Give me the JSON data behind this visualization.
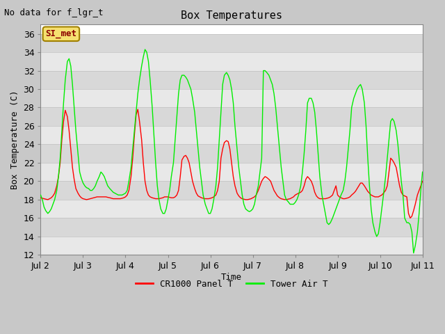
{
  "title": "Box Temperatures",
  "xlabel": "Time",
  "ylabel": "Box Temperature (C)",
  "note": "No data for f_lgr_t",
  "annotation_text": "SI_met",
  "ylim": [
    12,
    37
  ],
  "yticks": [
    12,
    14,
    16,
    18,
    20,
    22,
    24,
    26,
    28,
    30,
    32,
    34,
    36
  ],
  "bg_color": "#c8c8c8",
  "plot_bg_light": "#e8e8e8",
  "plot_bg_dark": "#d8d8d8",
  "grid_color": "#c8c8c8",
  "legend_labels": [
    "CR1000 Panel T",
    "Tower Air T"
  ],
  "x_day_labels": [
    "Jul 2",
    "Jul 3",
    "Jul 4",
    "Jul 5",
    "Jul 6",
    "Jul 7",
    "Jul 8",
    "Jul 9",
    "Jul 10",
    "Jul 11"
  ],
  "x_day_positions": [
    0,
    1,
    2,
    3,
    4,
    5,
    6,
    7,
    8,
    9
  ],
  "red_x": [
    0.0,
    0.04,
    0.08,
    0.12,
    0.17,
    0.21,
    0.25,
    0.29,
    0.33,
    0.38,
    0.42,
    0.46,
    0.5,
    0.54,
    0.58,
    0.63,
    0.67,
    0.71,
    0.75,
    0.79,
    0.83,
    0.88,
    0.92,
    0.96,
    1.0,
    1.04,
    1.08,
    1.13,
    1.17,
    1.21,
    1.25,
    1.29,
    1.33,
    1.38,
    1.42,
    1.46,
    1.5,
    1.54,
    1.58,
    1.63,
    1.67,
    1.71,
    1.75,
    1.79,
    1.83,
    1.88,
    1.92,
    1.96,
    2.0,
    2.04,
    2.08,
    2.13,
    2.17,
    2.21,
    2.25,
    2.29,
    2.33,
    2.38,
    2.42,
    2.46,
    2.5,
    2.54,
    2.58,
    2.63,
    2.67,
    2.71,
    2.75,
    2.79,
    2.83,
    2.88,
    2.92,
    2.96,
    3.0,
    3.04,
    3.08,
    3.13,
    3.17,
    3.21,
    3.25,
    3.29,
    3.33,
    3.38,
    3.42,
    3.46,
    3.5,
    3.54,
    3.58,
    3.63,
    3.67,
    3.71,
    3.75,
    3.79,
    3.83,
    3.88,
    3.92,
    3.96,
    4.0,
    4.04,
    4.08,
    4.13,
    4.17,
    4.21,
    4.25,
    4.29,
    4.33,
    4.38,
    4.42,
    4.46,
    4.5,
    4.54,
    4.58,
    4.63,
    4.67,
    4.71,
    4.75,
    4.79,
    4.83,
    4.88,
    4.92,
    4.96,
    5.0,
    5.04,
    5.08,
    5.13,
    5.17,
    5.21,
    5.25,
    5.29,
    5.33,
    5.38,
    5.42,
    5.46,
    5.5,
    5.54,
    5.58,
    5.63,
    5.67,
    5.71,
    5.75,
    5.79,
    5.83,
    5.88,
    5.92,
    5.96,
    6.0,
    6.04,
    6.08,
    6.13,
    6.17,
    6.21,
    6.25,
    6.29,
    6.33,
    6.38,
    6.42,
    6.46,
    6.5,
    6.54,
    6.58,
    6.63,
    6.67,
    6.71,
    6.75,
    6.79,
    6.83,
    6.88,
    6.92,
    6.96,
    7.0,
    7.04,
    7.08,
    7.13,
    7.17,
    7.21,
    7.25,
    7.29,
    7.33,
    7.38,
    7.42,
    7.46,
    7.5,
    7.54,
    7.58,
    7.63,
    7.67,
    7.71,
    7.75,
    7.79,
    7.83,
    7.88,
    7.92,
    7.96,
    8.0,
    8.04,
    8.08,
    8.13,
    8.17,
    8.21,
    8.25,
    8.29,
    8.33,
    8.38,
    8.42,
    8.46,
    8.5,
    8.54,
    8.58,
    8.63,
    8.67,
    8.71,
    8.75,
    8.79,
    8.83,
    8.88,
    8.92,
    8.96,
    9.0
  ],
  "red_y": [
    18.2,
    18.15,
    18.1,
    18.05,
    18.0,
    18.1,
    18.2,
    18.4,
    18.7,
    19.5,
    20.5,
    22.0,
    24.5,
    26.5,
    27.7,
    27.0,
    25.5,
    23.5,
    21.5,
    20.2,
    19.2,
    18.7,
    18.4,
    18.2,
    18.1,
    18.05,
    18.0,
    18.05,
    18.1,
    18.15,
    18.2,
    18.25,
    18.3,
    18.3,
    18.3,
    18.3,
    18.3,
    18.3,
    18.25,
    18.2,
    18.15,
    18.1,
    18.1,
    18.1,
    18.1,
    18.1,
    18.15,
    18.2,
    18.3,
    18.5,
    19.0,
    20.5,
    22.5,
    25.0,
    27.2,
    27.8,
    26.5,
    24.5,
    22.0,
    20.0,
    19.0,
    18.5,
    18.3,
    18.2,
    18.15,
    18.1,
    18.1,
    18.1,
    18.15,
    18.2,
    18.3,
    18.3,
    18.3,
    18.25,
    18.2,
    18.2,
    18.3,
    18.5,
    19.0,
    20.5,
    22.3,
    22.7,
    22.8,
    22.5,
    22.0,
    21.0,
    20.0,
    19.2,
    18.7,
    18.4,
    18.3,
    18.2,
    18.15,
    18.1,
    18.1,
    18.1,
    18.15,
    18.2,
    18.3,
    18.5,
    19.0,
    20.0,
    22.5,
    23.5,
    24.2,
    24.4,
    24.3,
    23.5,
    22.0,
    20.5,
    19.5,
    18.7,
    18.4,
    18.2,
    18.1,
    18.05,
    18.0,
    18.0,
    18.05,
    18.1,
    18.2,
    18.3,
    18.5,
    19.0,
    19.5,
    20.0,
    20.3,
    20.5,
    20.4,
    20.2,
    20.0,
    19.5,
    19.0,
    18.7,
    18.4,
    18.2,
    18.1,
    18.05,
    18.0,
    18.0,
    18.05,
    18.1,
    18.2,
    18.3,
    18.5,
    18.6,
    18.7,
    18.8,
    19.0,
    19.5,
    20.2,
    20.5,
    20.3,
    20.0,
    19.5,
    18.8,
    18.4,
    18.2,
    18.1,
    18.1,
    18.1,
    18.1,
    18.15,
    18.2,
    18.3,
    18.5,
    19.0,
    19.5,
    18.5,
    18.3,
    18.2,
    18.1,
    18.1,
    18.15,
    18.2,
    18.3,
    18.5,
    18.7,
    18.9,
    19.2,
    19.5,
    19.8,
    19.8,
    19.5,
    19.2,
    18.9,
    18.7,
    18.5,
    18.4,
    18.3,
    18.3,
    18.3,
    18.4,
    18.5,
    18.7,
    19.0,
    19.5,
    21.0,
    22.5,
    22.3,
    22.0,
    21.5,
    20.5,
    19.5,
    18.8,
    18.5,
    18.4,
    18.3,
    16.5,
    16.0,
    16.2,
    16.8,
    17.5,
    18.5,
    19.0,
    19.5,
    20.0
  ],
  "green_x": [
    0.0,
    0.04,
    0.08,
    0.12,
    0.17,
    0.21,
    0.25,
    0.29,
    0.33,
    0.38,
    0.42,
    0.46,
    0.5,
    0.54,
    0.58,
    0.63,
    0.67,
    0.71,
    0.75,
    0.79,
    0.83,
    0.88,
    0.92,
    0.96,
    1.0,
    1.04,
    1.08,
    1.13,
    1.17,
    1.21,
    1.25,
    1.29,
    1.33,
    1.38,
    1.42,
    1.46,
    1.5,
    1.54,
    1.58,
    1.63,
    1.67,
    1.71,
    1.75,
    1.79,
    1.83,
    1.88,
    1.92,
    1.96,
    2.0,
    2.04,
    2.08,
    2.13,
    2.17,
    2.21,
    2.25,
    2.29,
    2.33,
    2.38,
    2.42,
    2.46,
    2.5,
    2.54,
    2.58,
    2.63,
    2.67,
    2.71,
    2.75,
    2.79,
    2.83,
    2.88,
    2.92,
    2.96,
    3.0,
    3.04,
    3.08,
    3.13,
    3.17,
    3.21,
    3.25,
    3.29,
    3.33,
    3.38,
    3.42,
    3.46,
    3.5,
    3.54,
    3.58,
    3.63,
    3.67,
    3.71,
    3.75,
    3.79,
    3.83,
    3.88,
    3.92,
    3.96,
    4.0,
    4.04,
    4.08,
    4.13,
    4.17,
    4.21,
    4.25,
    4.29,
    4.33,
    4.38,
    4.42,
    4.46,
    4.5,
    4.54,
    4.58,
    4.63,
    4.67,
    4.71,
    4.75,
    4.79,
    4.83,
    4.88,
    4.92,
    4.96,
    5.0,
    5.04,
    5.08,
    5.13,
    5.17,
    5.21,
    5.25,
    5.29,
    5.33,
    5.38,
    5.42,
    5.46,
    5.5,
    5.54,
    5.58,
    5.63,
    5.67,
    5.71,
    5.75,
    5.79,
    5.83,
    5.88,
    5.92,
    5.96,
    6.0,
    6.04,
    6.08,
    6.13,
    6.17,
    6.21,
    6.25,
    6.29,
    6.33,
    6.38,
    6.42,
    6.46,
    6.5,
    6.54,
    6.58,
    6.63,
    6.67,
    6.71,
    6.75,
    6.79,
    6.83,
    6.88,
    6.92,
    6.96,
    7.0,
    7.04,
    7.08,
    7.13,
    7.17,
    7.21,
    7.25,
    7.29,
    7.33,
    7.38,
    7.42,
    7.46,
    7.5,
    7.54,
    7.58,
    7.63,
    7.67,
    7.71,
    7.75,
    7.79,
    7.83,
    7.88,
    7.92,
    7.96,
    8.0,
    8.04,
    8.08,
    8.13,
    8.17,
    8.21,
    8.25,
    8.29,
    8.33,
    8.38,
    8.42,
    8.46,
    8.5,
    8.54,
    8.58,
    8.63,
    8.67,
    8.71,
    8.75,
    8.79,
    8.83,
    8.88,
    8.92,
    8.96,
    9.0
  ],
  "green_y": [
    18.5,
    18.0,
    17.2,
    16.8,
    16.5,
    16.7,
    17.0,
    17.5,
    18.0,
    19.0,
    20.5,
    22.5,
    25.5,
    28.5,
    31.0,
    33.0,
    33.3,
    32.5,
    30.5,
    28.0,
    25.5,
    23.0,
    21.0,
    20.3,
    19.8,
    19.5,
    19.3,
    19.2,
    19.0,
    19.0,
    19.2,
    19.5,
    20.0,
    20.5,
    21.0,
    20.8,
    20.5,
    20.0,
    19.5,
    19.2,
    19.0,
    18.8,
    18.7,
    18.6,
    18.5,
    18.5,
    18.5,
    18.6,
    18.7,
    19.0,
    20.0,
    21.5,
    23.5,
    25.5,
    27.5,
    29.5,
    31.0,
    32.5,
    33.5,
    34.3,
    34.0,
    33.0,
    31.0,
    28.0,
    25.0,
    22.0,
    19.5,
    18.0,
    17.0,
    16.5,
    16.5,
    17.0,
    18.0,
    19.0,
    20.5,
    22.0,
    24.5,
    27.0,
    29.5,
    31.0,
    31.5,
    31.5,
    31.3,
    31.0,
    30.5,
    30.0,
    29.0,
    27.5,
    25.5,
    23.5,
    21.5,
    20.0,
    18.5,
    17.5,
    17.0,
    16.5,
    16.5,
    17.0,
    18.0,
    19.5,
    21.5,
    24.5,
    27.5,
    30.5,
    31.5,
    31.8,
    31.5,
    31.0,
    30.0,
    28.5,
    26.0,
    23.5,
    21.5,
    20.0,
    18.5,
    17.5,
    17.0,
    16.8,
    16.7,
    16.8,
    17.0,
    17.5,
    18.5,
    19.5,
    21.0,
    22.5,
    32.0,
    32.0,
    31.8,
    31.5,
    31.0,
    30.5,
    29.5,
    28.0,
    26.0,
    23.5,
    21.5,
    20.0,
    18.5,
    18.0,
    17.8,
    17.5,
    17.5,
    17.5,
    17.7,
    18.0,
    18.5,
    19.5,
    21.0,
    23.0,
    25.5,
    28.5,
    29.0,
    29.0,
    28.5,
    27.5,
    25.5,
    23.0,
    20.5,
    18.5,
    17.5,
    16.5,
    15.5,
    15.3,
    15.5,
    16.0,
    16.5,
    17.0,
    17.5,
    18.0,
    18.5,
    19.0,
    20.0,
    21.5,
    23.5,
    25.5,
    28.0,
    29.0,
    29.5,
    30.0,
    30.3,
    30.5,
    30.0,
    28.5,
    26.0,
    22.5,
    19.5,
    17.0,
    15.5,
    14.5,
    14.0,
    14.3,
    15.5,
    17.0,
    18.5,
    20.5,
    22.5,
    24.5,
    26.5,
    26.8,
    26.5,
    25.5,
    24.0,
    22.0,
    20.0,
    18.5,
    16.0,
    15.5,
    15.5,
    15.3,
    14.5,
    12.2,
    13.0,
    14.5,
    16.5,
    19.0,
    21.0
  ]
}
